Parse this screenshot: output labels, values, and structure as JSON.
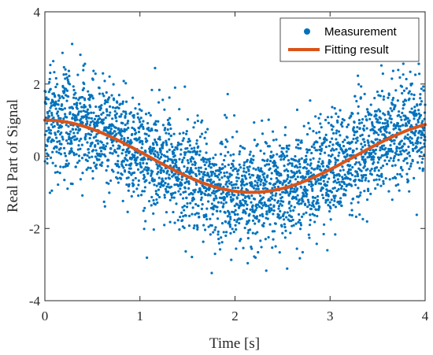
{
  "chart_data": {
    "type": "scatter",
    "title": "",
    "xlabel": "Time [s]",
    "ylabel": "Real Part of Signal",
    "xlim": [
      0,
      4
    ],
    "ylim": [
      -4,
      4
    ],
    "xticks": [
      0,
      1,
      2,
      3,
      4
    ],
    "xtick_labels": [
      "0",
      "1",
      "2",
      "3",
      "4"
    ],
    "yticks": [
      -4,
      -2,
      0,
      2,
      4
    ],
    "ytick_labels": [
      "-4",
      "-2",
      "0",
      "2",
      "4"
    ],
    "grid": false,
    "legend_position": "top-right",
    "series": [
      {
        "name": "Measurement",
        "kind": "scatter",
        "color": "#0072BD",
        "model": "cos",
        "amplitude": 1.0,
        "frequency_hz": 0.23,
        "noise_sd": 0.75,
        "x_start": 0,
        "x_end": 4,
        "point_count": 3000
      },
      {
        "name": "Fitting result",
        "kind": "line",
        "color": "#D95319",
        "model": "cos",
        "amplitude": 1.0,
        "frequency_hz": 0.23,
        "x_start": 0,
        "x_end": 4
      }
    ]
  }
}
